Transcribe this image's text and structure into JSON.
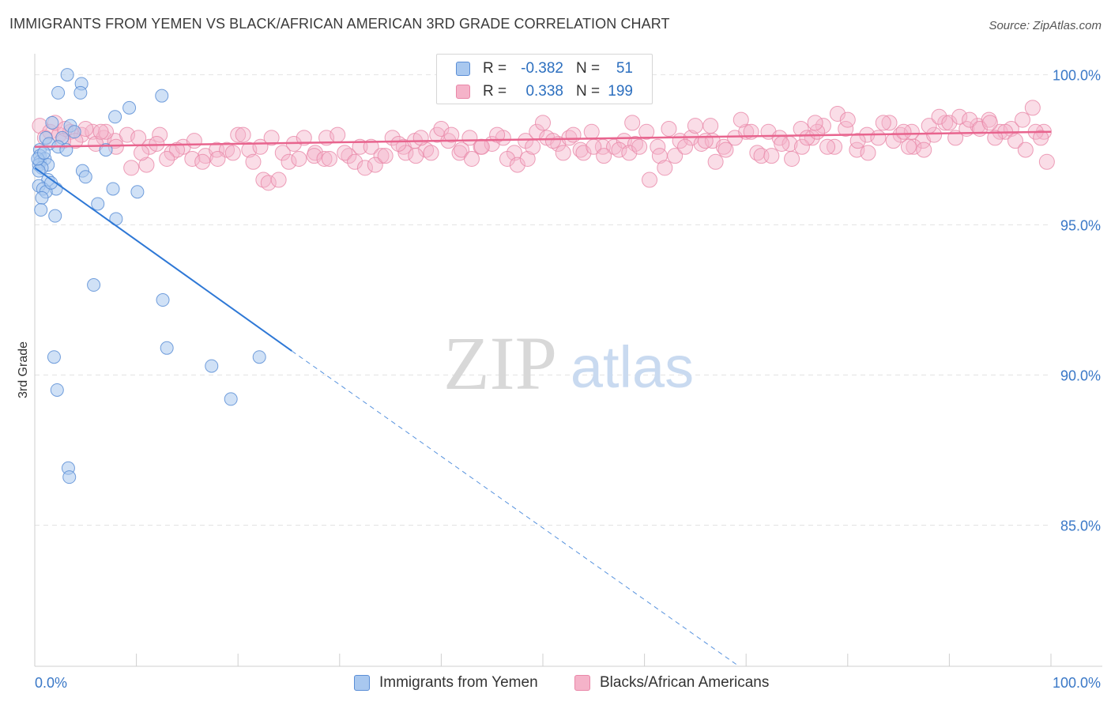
{
  "title": "IMMIGRANTS FROM YEMEN VS BLACK/AFRICAN AMERICAN 3RD GRADE CORRELATION CHART",
  "source": "Source: ZipAtlas.com",
  "watermark": {
    "zip": "ZIP",
    "atlas": "atlas"
  },
  "legend": {
    "r_label": "R =",
    "n_label": "N =",
    "rows": [
      {
        "r": "-0.382",
        "n": "51"
      },
      {
        "r": "0.338",
        "n": "199"
      }
    ]
  },
  "colors": {
    "blue_fill": "#a9c8ef",
    "blue_stroke": "#5b8ed6",
    "blue_line": "#2e78d6",
    "pink_fill": "#f5b3c9",
    "pink_stroke": "#e987a8",
    "pink_line": "#e8648e",
    "grid": "#e3e3e3",
    "tick_label": "#3a78c7"
  },
  "chart_data": {
    "type": "scatter",
    "title": "IMMIGRANTS FROM YEMEN VS BLACK/AFRICAN AMERICAN 3RD GRADE CORRELATION CHART",
    "xlabel": "",
    "ylabel": "3rd Grade",
    "xlim": [
      0,
      100
    ],
    "ylim": [
      80.3,
      100.7
    ],
    "x_tick_labels": [
      "0.0%",
      "100.0%"
    ],
    "y_ticks": [
      100,
      95,
      90,
      85
    ],
    "y_tick_labels": [
      "100.0%",
      "95.0%",
      "90.0%",
      "85.0%"
    ],
    "grid": true,
    "legend_position": "top-center",
    "series": [
      {
        "name": "Immigrants from Yemen",
        "R": -0.382,
        "N": 51,
        "trend_solid": {
          "x": [
            0.0,
            25.3
          ],
          "y": [
            96.9,
            90.8
          ]
        },
        "trend_dashed": {
          "x": [
            25.3,
            69.3
          ],
          "y": [
            90.8,
            80.3
          ]
        },
        "points": [
          [
            3.2,
            100.0
          ],
          [
            4.6,
            99.7
          ],
          [
            2.3,
            99.4
          ],
          [
            4.5,
            99.4
          ],
          [
            12.5,
            99.3
          ],
          [
            9.3,
            98.9
          ],
          [
            7.9,
            98.6
          ],
          [
            1.7,
            98.4
          ],
          [
            3.5,
            98.3
          ],
          [
            3.9,
            98.1
          ],
          [
            1.1,
            97.9
          ],
          [
            2.7,
            97.9
          ],
          [
            1.4,
            97.7
          ],
          [
            2.3,
            97.6
          ],
          [
            0.5,
            97.5
          ],
          [
            3.1,
            97.5
          ],
          [
            7.0,
            97.5
          ],
          [
            0.5,
            97.3
          ],
          [
            0.5,
            97.1
          ],
          [
            1.0,
            97.2
          ],
          [
            0.4,
            97.0
          ],
          [
            1.3,
            97.0
          ],
          [
            0.7,
            96.9
          ],
          [
            0.4,
            96.8
          ],
          [
            4.7,
            96.8
          ],
          [
            5.0,
            96.6
          ],
          [
            1.3,
            96.5
          ],
          [
            0.4,
            96.3
          ],
          [
            0.8,
            96.2
          ],
          [
            2.1,
            96.2
          ],
          [
            7.7,
            96.2
          ],
          [
            10.1,
            96.1
          ],
          [
            1.1,
            96.1
          ],
          [
            0.7,
            95.9
          ],
          [
            6.2,
            95.7
          ],
          [
            0.6,
            95.5
          ],
          [
            2.0,
            95.3
          ],
          [
            8.0,
            95.2
          ],
          [
            5.8,
            93.0
          ],
          [
            12.6,
            92.5
          ],
          [
            13.0,
            90.9
          ],
          [
            17.4,
            90.3
          ],
          [
            22.1,
            90.6
          ],
          [
            1.9,
            90.6
          ],
          [
            2.2,
            89.5
          ],
          [
            19.3,
            89.2
          ],
          [
            3.3,
            86.9
          ],
          [
            3.4,
            86.6
          ],
          [
            0.3,
            97.2
          ],
          [
            1.6,
            96.4
          ],
          [
            0.9,
            97.4
          ]
        ]
      },
      {
        "name": "Blacks/African Americans",
        "R": 0.338,
        "N": 199,
        "trend": {
          "x": [
            0,
            100
          ],
          "y": [
            97.6,
            98.1
          ]
        },
        "points": [
          [
            0.5,
            98.3
          ],
          [
            1.5,
            98.1
          ],
          [
            2.4,
            98.0
          ],
          [
            3.5,
            98.1
          ],
          [
            4.6,
            98.0
          ],
          [
            5.7,
            98.1
          ],
          [
            6.8,
            97.9
          ],
          [
            7.9,
            97.8
          ],
          [
            9.1,
            98.0
          ],
          [
            10.2,
            97.9
          ],
          [
            11.3,
            97.6
          ],
          [
            12.3,
            98.0
          ],
          [
            13.5,
            97.4
          ],
          [
            14.6,
            97.6
          ],
          [
            15.7,
            97.8
          ],
          [
            16.8,
            97.3
          ],
          [
            17.9,
            97.5
          ],
          [
            18.9,
            97.5
          ],
          [
            20.0,
            98.0
          ],
          [
            21.1,
            97.5
          ],
          [
            22.2,
            97.6
          ],
          [
            23.3,
            97.9
          ],
          [
            24.4,
            97.4
          ],
          [
            25.5,
            97.7
          ],
          [
            26.5,
            97.9
          ],
          [
            27.6,
            97.4
          ],
          [
            28.7,
            97.9
          ],
          [
            29.8,
            98.0
          ],
          [
            30.9,
            97.3
          ],
          [
            32.0,
            97.6
          ],
          [
            33.1,
            97.6
          ],
          [
            34.1,
            97.3
          ],
          [
            35.2,
            97.9
          ],
          [
            36.3,
            97.6
          ],
          [
            37.4,
            97.8
          ],
          [
            38.5,
            97.5
          ],
          [
            39.6,
            98.0
          ],
          [
            40.7,
            97.8
          ],
          [
            41.8,
            97.4
          ],
          [
            42.8,
            97.9
          ],
          [
            43.9,
            97.6
          ],
          [
            45.0,
            97.7
          ],
          [
            46.1,
            97.9
          ],
          [
            47.2,
            97.4
          ],
          [
            48.3,
            97.8
          ],
          [
            49.4,
            98.1
          ],
          [
            50.4,
            97.9
          ],
          [
            51.5,
            97.7
          ],
          [
            52.6,
            97.9
          ],
          [
            53.7,
            97.5
          ],
          [
            54.8,
            98.1
          ],
          [
            55.9,
            97.6
          ],
          [
            57.0,
            97.6
          ],
          [
            58.0,
            97.8
          ],
          [
            59.1,
            97.7
          ],
          [
            60.2,
            98.1
          ],
          [
            61.3,
            97.6
          ],
          [
            62.4,
            98.2
          ],
          [
            63.5,
            97.8
          ],
          [
            64.6,
            97.9
          ],
          [
            65.6,
            97.7
          ],
          [
            66.7,
            97.8
          ],
          [
            67.8,
            97.6
          ],
          [
            68.9,
            97.9
          ],
          [
            70.0,
            98.1
          ],
          [
            71.1,
            97.4
          ],
          [
            72.2,
            98.1
          ],
          [
            73.3,
            97.9
          ],
          [
            74.3,
            97.7
          ],
          [
            75.4,
            98.2
          ],
          [
            76.5,
            97.9
          ],
          [
            77.6,
            98.3
          ],
          [
            78.7,
            97.6
          ],
          [
            79.8,
            98.2
          ],
          [
            80.9,
            97.5
          ],
          [
            81.9,
            98.0
          ],
          [
            83.0,
            97.9
          ],
          [
            84.1,
            98.4
          ],
          [
            85.2,
            98.0
          ],
          [
            86.3,
            98.1
          ],
          [
            87.4,
            97.8
          ],
          [
            88.5,
            98.0
          ],
          [
            89.6,
            98.4
          ],
          [
            90.6,
            97.9
          ],
          [
            91.7,
            98.2
          ],
          [
            92.8,
            98.3
          ],
          [
            93.9,
            98.5
          ],
          [
            95.0,
            98.1
          ],
          [
            96.1,
            98.2
          ],
          [
            97.2,
            98.5
          ],
          [
            98.2,
            98.9
          ],
          [
            99.3,
            98.1
          ],
          [
            1.0,
            97.9
          ],
          [
            2.0,
            98.4
          ],
          [
            3.0,
            98.2
          ],
          [
            4.0,
            97.8
          ],
          [
            5.0,
            98.2
          ],
          [
            6.0,
            97.7
          ],
          [
            7.0,
            98.1
          ],
          [
            8.0,
            97.6
          ],
          [
            9.5,
            96.9
          ],
          [
            11.0,
            97.0
          ],
          [
            12.0,
            97.7
          ],
          [
            14.0,
            97.5
          ],
          [
            15.5,
            97.2
          ],
          [
            16.5,
            97.1
          ],
          [
            18.0,
            97.2
          ],
          [
            19.5,
            97.4
          ],
          [
            21.5,
            97.1
          ],
          [
            22.5,
            96.5
          ],
          [
            23.0,
            96.4
          ],
          [
            24.0,
            96.5
          ],
          [
            25.0,
            97.1
          ],
          [
            26.0,
            97.2
          ],
          [
            27.5,
            97.3
          ],
          [
            28.5,
            97.2
          ],
          [
            30.5,
            97.4
          ],
          [
            31.5,
            97.1
          ],
          [
            32.5,
            96.9
          ],
          [
            33.5,
            97.0
          ],
          [
            34.5,
            97.3
          ],
          [
            36.5,
            97.4
          ],
          [
            37.5,
            97.3
          ],
          [
            38.0,
            97.9
          ],
          [
            39.0,
            97.4
          ],
          [
            40.0,
            98.2
          ],
          [
            42.0,
            97.5
          ],
          [
            43.0,
            97.2
          ],
          [
            44.0,
            97.6
          ],
          [
            45.5,
            98.0
          ],
          [
            46.5,
            97.2
          ],
          [
            47.5,
            97.0
          ],
          [
            48.5,
            97.2
          ],
          [
            50.0,
            98.4
          ],
          [
            51.0,
            97.8
          ],
          [
            52.0,
            97.4
          ],
          [
            53.0,
            98.0
          ],
          [
            54.0,
            97.4
          ],
          [
            55.0,
            97.6
          ],
          [
            56.0,
            97.3
          ],
          [
            57.5,
            97.5
          ],
          [
            58.5,
            97.4
          ],
          [
            59.5,
            97.6
          ],
          [
            60.5,
            96.5
          ],
          [
            61.5,
            97.3
          ],
          [
            62.0,
            96.9
          ],
          [
            63.0,
            97.3
          ],
          [
            64.0,
            97.6
          ],
          [
            65.0,
            98.3
          ],
          [
            66.0,
            97.8
          ],
          [
            67.0,
            97.1
          ],
          [
            68.0,
            97.5
          ],
          [
            69.5,
            98.5
          ],
          [
            70.5,
            98.1
          ],
          [
            71.5,
            97.3
          ],
          [
            72.5,
            97.3
          ],
          [
            73.5,
            97.7
          ],
          [
            74.5,
            97.2
          ],
          [
            75.5,
            97.6
          ],
          [
            76.0,
            97.9
          ],
          [
            77.0,
            98.1
          ],
          [
            78.0,
            97.6
          ],
          [
            79.0,
            98.7
          ],
          [
            80.0,
            98.5
          ],
          [
            81.0,
            97.8
          ],
          [
            82.0,
            97.4
          ],
          [
            83.5,
            98.4
          ],
          [
            84.5,
            97.8
          ],
          [
            85.5,
            98.1
          ],
          [
            86.5,
            97.6
          ],
          [
            87.5,
            97.5
          ],
          [
            88.0,
            98.3
          ],
          [
            89.0,
            98.6
          ],
          [
            90.0,
            98.4
          ],
          [
            91.0,
            98.6
          ],
          [
            92.0,
            98.5
          ],
          [
            93.0,
            98.2
          ],
          [
            94.0,
            98.4
          ],
          [
            95.5,
            98.1
          ],
          [
            96.5,
            97.8
          ],
          [
            97.5,
            97.5
          ],
          [
            98.5,
            98.1
          ],
          [
            99.0,
            97.9
          ],
          [
            99.6,
            97.1
          ],
          [
            10.5,
            97.4
          ],
          [
            20.5,
            98.0
          ],
          [
            29.0,
            97.2
          ],
          [
            35.8,
            97.7
          ],
          [
            41.0,
            98.0
          ],
          [
            49.0,
            97.6
          ],
          [
            58.8,
            98.4
          ],
          [
            66.5,
            98.3
          ],
          [
            76.8,
            98.4
          ],
          [
            86.0,
            97.6
          ],
          [
            94.5,
            97.9
          ],
          [
            2.8,
            97.8
          ],
          [
            6.5,
            98.1
          ],
          [
            13.0,
            97.2
          ]
        ]
      }
    ]
  }
}
